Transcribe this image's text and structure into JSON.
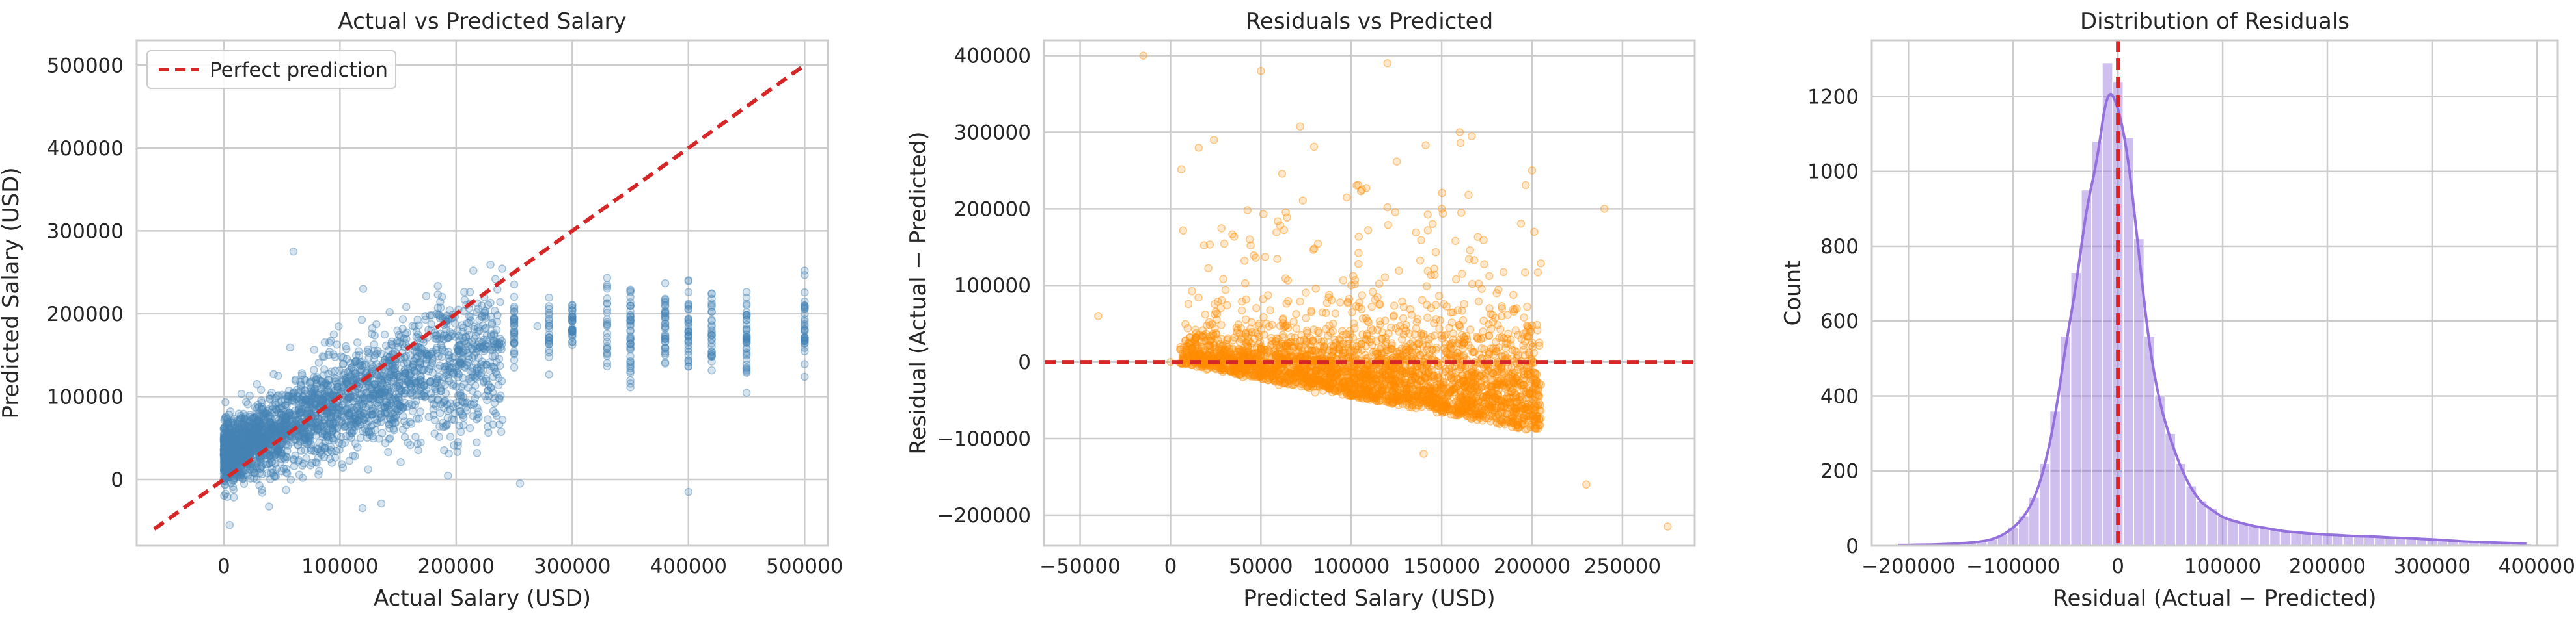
{
  "chart_data": [
    {
      "type": "scatter",
      "title": "Actual vs Predicted Salary",
      "xlabel": "Actual Salary (USD)",
      "ylabel": "Predicted Salary (USD)",
      "xlim": [
        -75000,
        520000
      ],
      "ylim": [
        -80000,
        530000
      ],
      "xticks": [
        0,
        100000,
        200000,
        300000,
        400000,
        500000
      ],
      "xtick_labels": [
        "0",
        "100000",
        "200000",
        "300000",
        "400000",
        "500000"
      ],
      "yticks": [
        0,
        100000,
        200000,
        300000,
        400000,
        500000
      ],
      "ytick_labels": [
        "0",
        "100000",
        "200000",
        "300000",
        "400000",
        "500000"
      ],
      "grid": true,
      "legend": {
        "position": "top-left",
        "entries": [
          "Perfect prediction"
        ]
      },
      "colors": {
        "points": "#4682b4",
        "reference_line": "#d62728"
      },
      "reference_line": {
        "name": "Perfect prediction",
        "x": [
          -60000,
          500000
        ],
        "y": [
          -60000,
          500000
        ]
      },
      "series": [
        {
          "points": [
            [
              10000,
              40000
            ],
            [
              20000,
              60000
            ],
            [
              30000,
              70000
            ],
            [
              45000,
              85000
            ],
            [
              60000,
              100000
            ],
            [
              75000,
              110000
            ],
            [
              90000,
              120000
            ],
            [
              110000,
              135000
            ],
            [
              130000,
              150000
            ],
            [
              150000,
              160000
            ],
            [
              170000,
              170000
            ],
            [
              190000,
              175000
            ],
            [
              210000,
              180000
            ],
            [
              230000,
              175000
            ],
            [
              250000,
              180000
            ],
            [
              270000,
              185000
            ],
            [
              300000,
              180000
            ],
            [
              330000,
              185000
            ],
            [
              350000,
              180000
            ],
            [
              380000,
              175000
            ],
            [
              400000,
              180000
            ],
            [
              420000,
              160000
            ],
            [
              450000,
              175000
            ],
            [
              500000,
              200000
            ],
            [
              60000,
              275000
            ],
            [
              5000,
              -55000
            ],
            [
              400000,
              -15000
            ],
            [
              255000,
              -5000
            ],
            [
              120000,
              230000
            ],
            [
              80000,
              20000
            ]
          ]
        }
      ]
    },
    {
      "type": "scatter",
      "title": "Residuals vs Predicted",
      "xlabel": "Predicted Salary (USD)",
      "ylabel": "Residual (Actual − Predicted)",
      "xlim": [
        -70000,
        290000
      ],
      "ylim": [
        -240000,
        420000
      ],
      "xticks": [
        -50000,
        0,
        50000,
        100000,
        150000,
        200000,
        250000
      ],
      "xtick_labels": [
        "−50000",
        "0",
        "50000",
        "100000",
        "150000",
        "200000",
        "250000"
      ],
      "yticks": [
        -200000,
        -100000,
        0,
        100000,
        200000,
        300000,
        400000
      ],
      "ytick_labels": [
        "−200000",
        "−100000",
        "0",
        "100000",
        "200000",
        "300000",
        "400000"
      ],
      "grid": true,
      "colors": {
        "points": "#ff8c00",
        "reference_line": "#d62728"
      },
      "reference_line": {
        "y": 0
      },
      "series": [
        {
          "points": [
            [
              -15000,
              400000
            ],
            [
              0,
              0
            ],
            [
              20000,
              -10000
            ],
            [
              40000,
              -20000
            ],
            [
              60000,
              -30000
            ],
            [
              80000,
              -40000
            ],
            [
              100000,
              -40000
            ],
            [
              120000,
              -50000
            ],
            [
              150000,
              -60000
            ],
            [
              180000,
              -60000
            ],
            [
              200000,
              -80000
            ],
            [
              100000,
              100000
            ],
            [
              150000,
              200000
            ],
            [
              160000,
              300000
            ],
            [
              120000,
              390000
            ],
            [
              275000,
              -215000
            ],
            [
              230000,
              -160000
            ],
            [
              90000,
              50000
            ],
            [
              130000,
              20000
            ],
            [
              170000,
              30000
            ],
            [
              -40000,
              60000
            ],
            [
              200000,
              250000
            ],
            [
              240000,
              200000
            ],
            [
              50000,
              380000
            ],
            [
              140000,
              -120000
            ]
          ]
        }
      ]
    },
    {
      "type": "bar",
      "title": "Distribution of Residuals",
      "xlabel": "Residual (Actual − Predicted)",
      "ylabel": "Count",
      "xlim": [
        -235000,
        420000
      ],
      "ylim": [
        0,
        1350
      ],
      "xticks": [
        -200000,
        -100000,
        0,
        100000,
        200000,
        300000,
        400000
      ],
      "xtick_labels": [
        "−200000",
        "−100000",
        "0",
        "100000",
        "200000",
        "300000",
        "400000"
      ],
      "yticks": [
        0,
        200,
        400,
        600,
        800,
        1000,
        1200
      ],
      "ytick_labels": [
        "0",
        "200",
        "400",
        "600",
        "800",
        "1000",
        "1200"
      ],
      "grid": true,
      "colors": {
        "bars": "#9370db",
        "kde": "#9370db",
        "reference_line": "#d62728"
      },
      "reference_line": {
        "x": 0
      },
      "bin_width": 10000,
      "bins": [
        [
          -210000,
          2
        ],
        [
          -200000,
          2
        ],
        [
          -190000,
          3
        ],
        [
          -180000,
          3
        ],
        [
          -170000,
          4
        ],
        [
          -160000,
          5
        ],
        [
          -150000,
          7
        ],
        [
          -140000,
          9
        ],
        [
          -130000,
          12
        ],
        [
          -120000,
          18
        ],
        [
          -110000,
          30
        ],
        [
          -100000,
          50
        ],
        [
          -90000,
          80
        ],
        [
          -80000,
          130
        ],
        [
          -70000,
          220
        ],
        [
          -60000,
          360
        ],
        [
          -50000,
          560
        ],
        [
          -40000,
          730
        ],
        [
          -30000,
          950
        ],
        [
          -20000,
          1080
        ],
        [
          -10000,
          1290
        ],
        [
          0,
          1240
        ],
        [
          10000,
          1090
        ],
        [
          20000,
          820
        ],
        [
          30000,
          560
        ],
        [
          40000,
          400
        ],
        [
          50000,
          300
        ],
        [
          60000,
          220
        ],
        [
          70000,
          160
        ],
        [
          80000,
          120
        ],
        [
          90000,
          100
        ],
        [
          100000,
          80
        ],
        [
          110000,
          70
        ],
        [
          120000,
          62
        ],
        [
          130000,
          55
        ],
        [
          140000,
          50
        ],
        [
          150000,
          45
        ],
        [
          160000,
          40
        ],
        [
          170000,
          38
        ],
        [
          180000,
          35
        ],
        [
          190000,
          33
        ],
        [
          200000,
          31
        ],
        [
          210000,
          30
        ],
        [
          220000,
          28
        ],
        [
          230000,
          27
        ],
        [
          240000,
          26
        ],
        [
          250000,
          25
        ],
        [
          260000,
          23
        ],
        [
          270000,
          22
        ],
        [
          280000,
          21
        ],
        [
          290000,
          19
        ],
        [
          300000,
          18
        ],
        [
          310000,
          16
        ],
        [
          320000,
          14
        ],
        [
          330000,
          12
        ],
        [
          340000,
          11
        ],
        [
          350000,
          10
        ],
        [
          360000,
          9
        ],
        [
          370000,
          8
        ],
        [
          380000,
          7
        ],
        [
          390000,
          6
        ]
      ]
    }
  ]
}
